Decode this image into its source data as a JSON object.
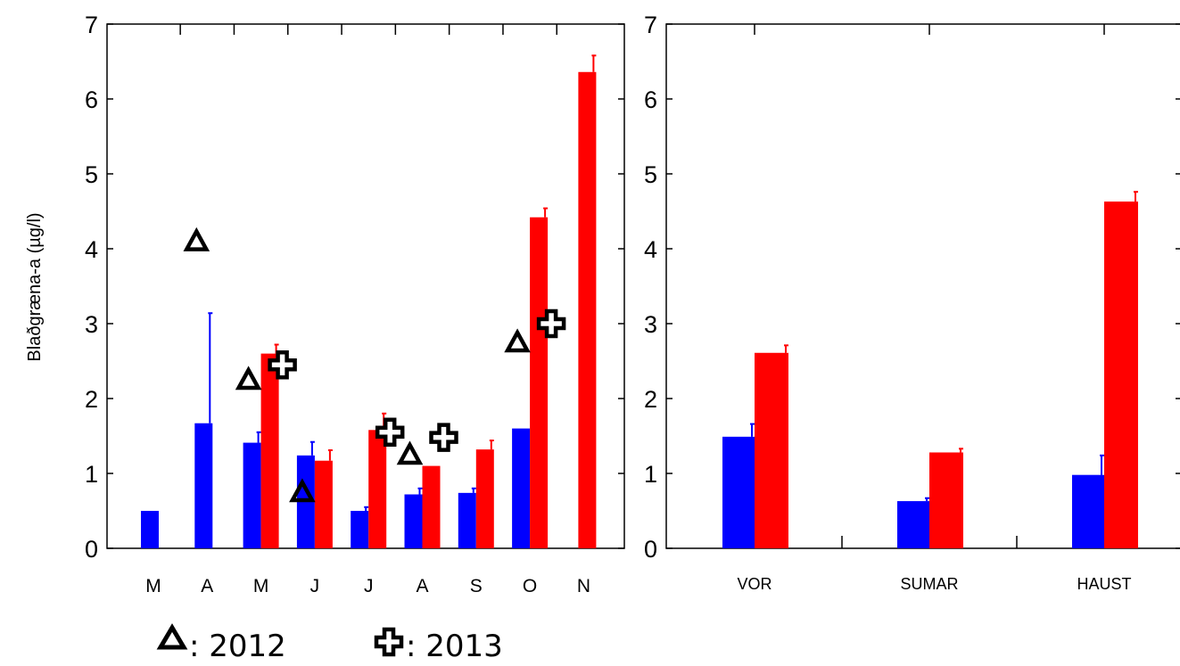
{
  "chart_data": [
    {
      "type": "bar",
      "ylabel": "Blaðgræna-a (µg/l)",
      "ylim": [
        0,
        7
      ],
      "yticks": [
        "0",
        "1",
        "2",
        "3",
        "4",
        "5",
        "6",
        "7"
      ],
      "categories": [
        "M",
        "A",
        "M",
        "J",
        "J",
        "A",
        "S",
        "O",
        "N"
      ],
      "colors": {
        "blue": "#0000ff",
        "red": "#ff0000"
      },
      "series": [
        {
          "values": [
            0.5,
            1.67,
            1.41,
            1.24,
            0.5,
            0.72,
            0.74,
            1.6,
            null
          ],
          "errors": [
            0,
            1.47,
            0.14,
            0.18,
            0.05,
            0.08,
            0.06,
            0,
            null
          ]
        },
        {
          "values": [
            null,
            null,
            2.6,
            1.17,
            1.58,
            1.1,
            1.32,
            4.42,
            6.36
          ],
          "errors": [
            null,
            null,
            0.12,
            0.14,
            0.22,
            0,
            0.12,
            0.12,
            0.22
          ]
        }
      ],
      "markers": {
        "2012": [
          null,
          4.1,
          2.25,
          0.75,
          null,
          1.25,
          null,
          2.75,
          null
        ],
        "2013": [
          null,
          null,
          2.45,
          null,
          1.55,
          1.48,
          null,
          3.0,
          null
        ]
      },
      "legend": [
        {
          "symbol": "triangle",
          "label": ": 2012"
        },
        {
          "symbol": "cross",
          "label": ": 2013"
        }
      ]
    },
    {
      "type": "bar",
      "ylim": [
        0,
        7
      ],
      "yticks": [
        "0",
        "1",
        "2",
        "3",
        "4",
        "5",
        "6",
        "7"
      ],
      "categories": [
        "VOR",
        "SUMAR",
        "HAUST"
      ],
      "series": [
        {
          "values": [
            1.49,
            0.63,
            0.98
          ],
          "errors": [
            0.17,
            0.04,
            0.26
          ]
        },
        {
          "values": [
            2.61,
            1.28,
            4.63
          ],
          "errors": [
            0.1,
            0.05,
            0.13
          ]
        }
      ]
    }
  ]
}
